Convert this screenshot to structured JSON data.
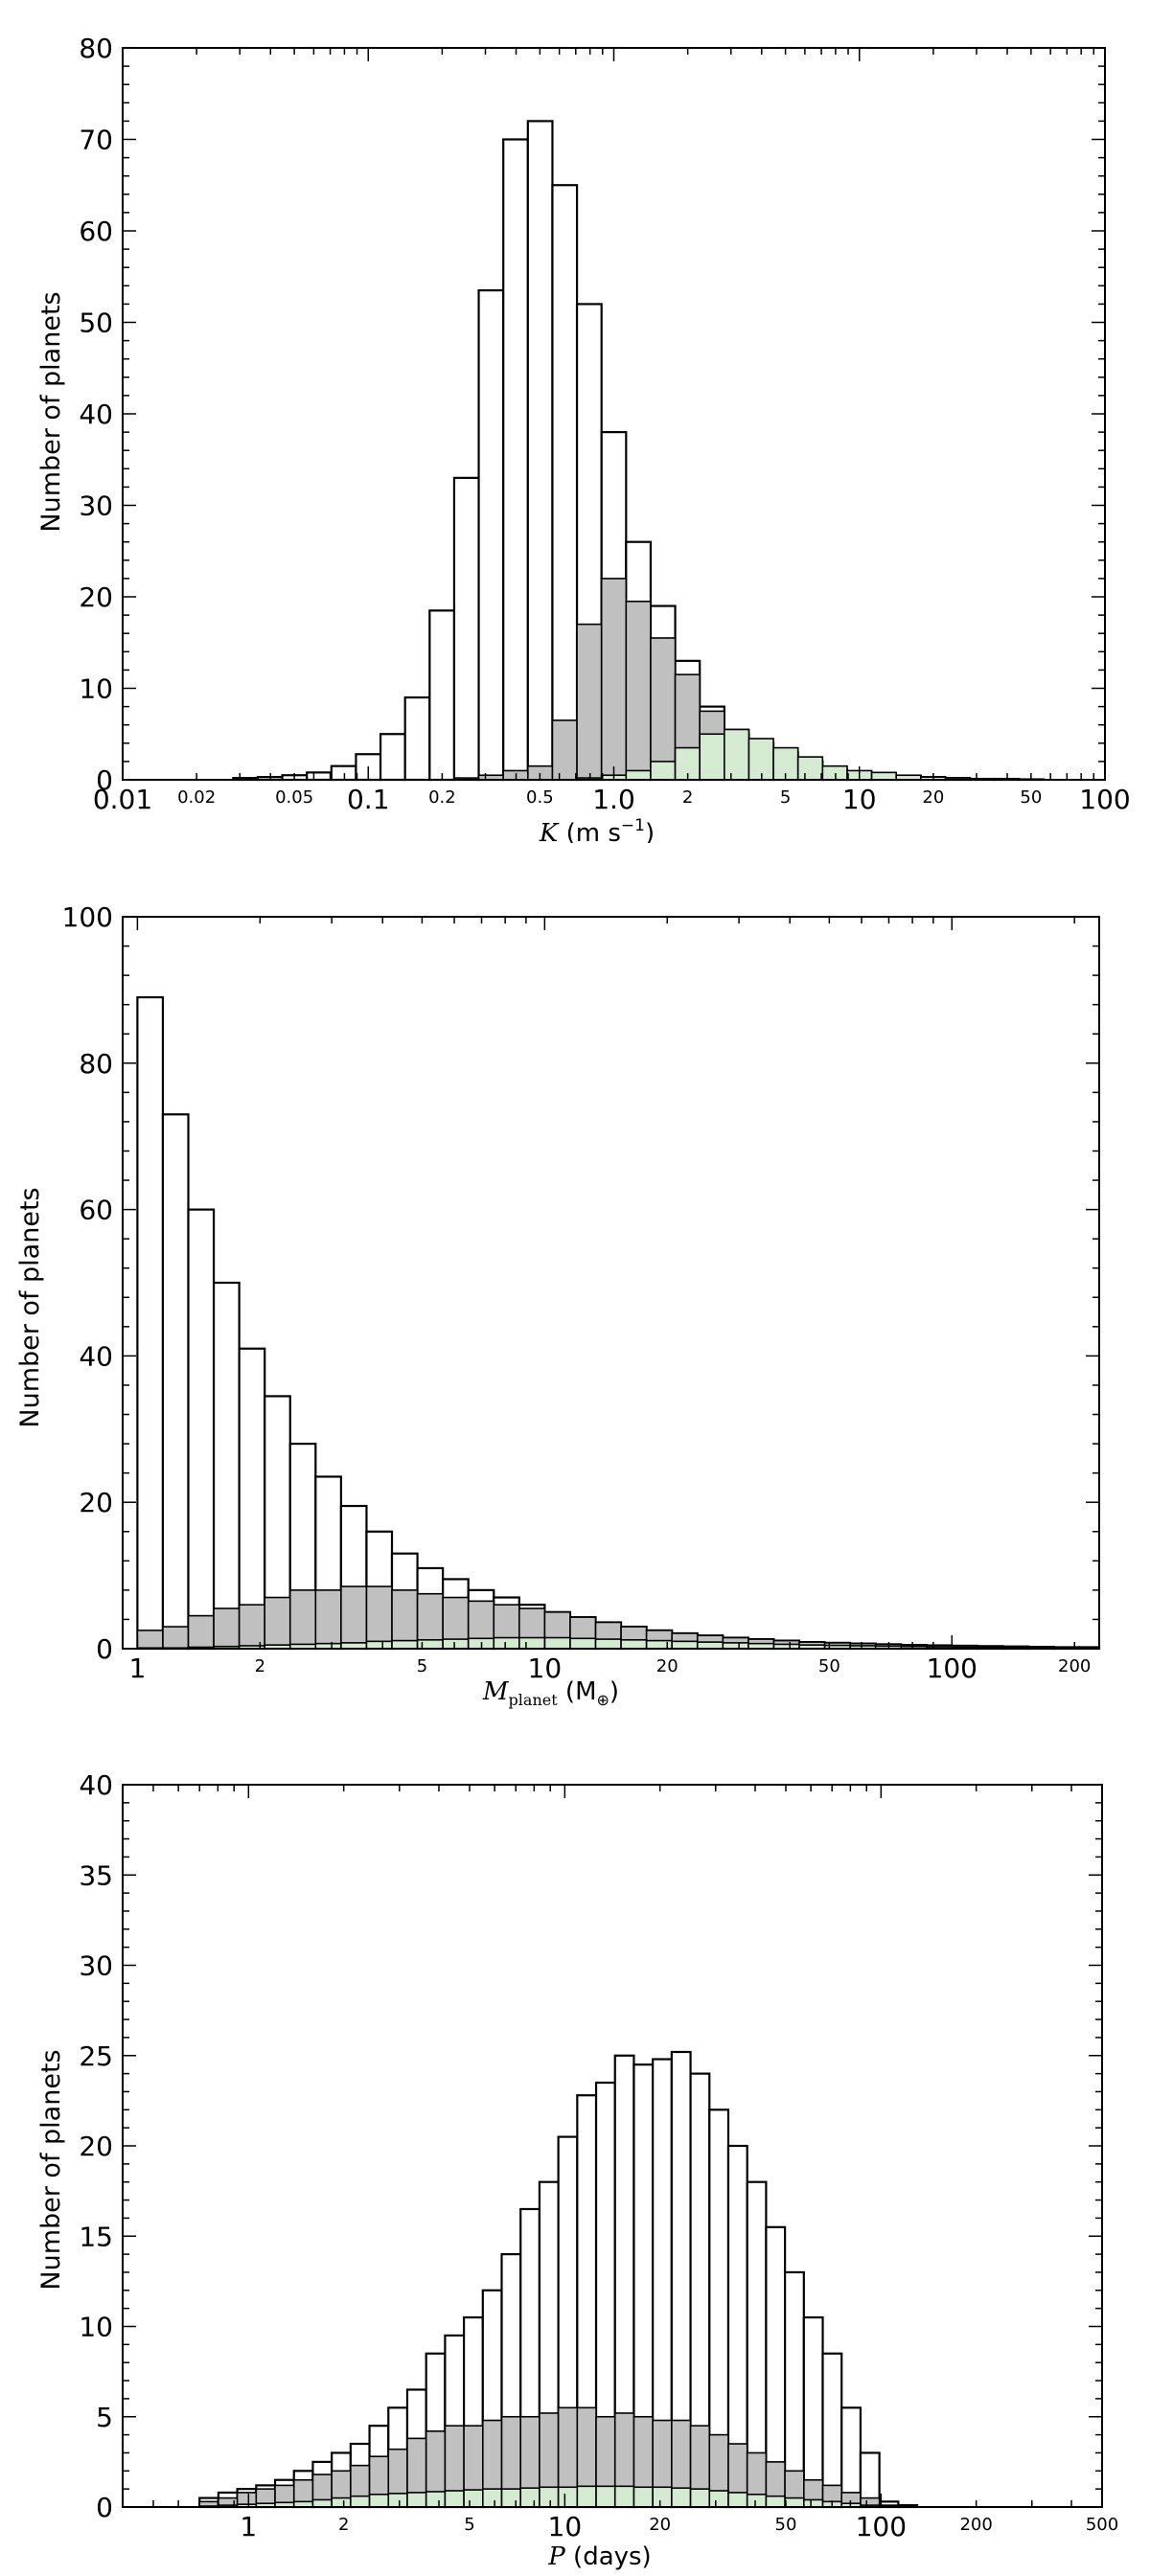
{
  "chart_data": [
    {
      "type": "bar",
      "title": "",
      "xlabel_italic": "K",
      "xlabel_rest": " (m s",
      "xlabel_sup": "−1",
      "xlabel_end": ")",
      "ylabel": "Number of planets",
      "xscale": "log",
      "xlim": [
        0.01,
        100
      ],
      "ylim": [
        0,
        80
      ],
      "xticks": [
        {
          "v": 0.01,
          "label": "0.01",
          "major": true
        },
        {
          "v": 0.02,
          "label": "0.02",
          "major": false
        },
        {
          "v": 0.05,
          "label": "0.05",
          "major": false
        },
        {
          "v": 0.1,
          "label": "0.1",
          "major": true
        },
        {
          "v": 0.2,
          "label": "0.2",
          "major": false
        },
        {
          "v": 0.5,
          "label": "0.5",
          "major": false
        },
        {
          "v": 1,
          "label": "1.0",
          "major": true
        },
        {
          "v": 2,
          "label": "2",
          "major": false
        },
        {
          "v": 5,
          "label": "5",
          "major": false
        },
        {
          "v": 10,
          "label": "10",
          "major": true
        },
        {
          "v": 20,
          "label": "20",
          "major": false
        },
        {
          "v": 50,
          "label": "50",
          "major": false
        },
        {
          "v": 100,
          "label": "100",
          "major": true
        }
      ],
      "yticks": [
        0,
        10,
        20,
        30,
        40,
        50,
        60,
        70,
        80
      ],
      "bin_edges_log10": [
        -1.55,
        -1.45,
        -1.35,
        -1.25,
        -1.15,
        -1.05,
        -0.95,
        -0.85,
        -0.75,
        -0.65,
        -0.55,
        -0.45,
        -0.35,
        -0.25,
        -0.15,
        -0.05,
        0.05,
        0.15,
        0.25,
        0.35,
        0.45,
        0.55,
        0.65,
        0.75,
        0.85,
        0.95,
        1.05,
        1.15,
        1.25,
        1.35,
        1.45,
        1.55,
        1.65,
        1.75
      ],
      "series": [
        {
          "color": "#ffffff",
          "values": [
            0.2,
            0.3,
            0.5,
            0.8,
            1.5,
            2.8,
            5,
            9,
            18.5,
            33,
            53.5,
            70,
            72,
            65,
            52,
            38,
            26,
            19,
            13,
            8,
            5,
            4,
            3,
            2,
            1.2,
            0.8,
            0.5,
            0.4,
            0.3,
            0.2,
            0.1,
            0.1,
            0.05
          ]
        },
        {
          "color": "#c0c0c0",
          "values": [
            0,
            0,
            0,
            0,
            0,
            0,
            0,
            0,
            0,
            0.2,
            0.5,
            1,
            1.5,
            6.5,
            17,
            22,
            19.5,
            15.5,
            11.5,
            7.5,
            5.5,
            4,
            3,
            2,
            1.2,
            0.8,
            0.5,
            0.4,
            0.3,
            0.2,
            0.1,
            0.1,
            0.05
          ]
        },
        {
          "color": "#d4ebd2",
          "values": [
            0,
            0,
            0,
            0,
            0,
            0,
            0,
            0,
            0,
            0,
            0,
            0,
            0,
            0,
            0.2,
            0.5,
            1,
            2,
            3.5,
            5,
            5.5,
            4.5,
            3.5,
            2.5,
            1.5,
            1,
            0.8,
            0.5,
            0.3,
            0.2,
            0.1,
            0.05,
            0
          ]
        }
      ]
    },
    {
      "type": "bar",
      "title": "",
      "xlabel_italic": "M",
      "xlabel_sub": "planet",
      "xlabel_rest": " (M",
      "xlabel_sub2": "⊕",
      "xlabel_end": ")",
      "ylabel": "Number of planets",
      "xscale": "log",
      "xlim": [
        0.92,
        230
      ],
      "ylim": [
        0,
        100
      ],
      "xticks": [
        {
          "v": 1,
          "label": "1",
          "major": true
        },
        {
          "v": 2,
          "label": "2",
          "major": false
        },
        {
          "v": 5,
          "label": "5",
          "major": false
        },
        {
          "v": 10,
          "label": "10",
          "major": true
        },
        {
          "v": 20,
          "label": "20",
          "major": false
        },
        {
          "v": 50,
          "label": "50",
          "major": false
        },
        {
          "v": 100,
          "label": "100",
          "major": true
        },
        {
          "v": 200,
          "label": "200",
          "major": false
        }
      ],
      "yticks": [
        0,
        20,
        40,
        60,
        80,
        100
      ],
      "bin_start": 1,
      "bin_ratio": 1.1548,
      "series": [
        {
          "color": "#ffffff",
          "values": [
            89,
            73,
            60,
            50,
            41,
            34.5,
            28,
            23.5,
            19.5,
            16,
            13,
            11,
            9.5,
            8,
            7,
            6,
            5,
            4.3,
            3.6,
            3,
            2.5,
            2.1,
            1.8,
            1.5,
            1.3,
            1.1,
            0.9,
            0.8,
            0.7,
            0.6,
            0.5,
            0.45,
            0.4,
            0.35,
            0.3,
            0.25,
            0.2,
            0.2,
            0.15,
            0.1
          ]
        },
        {
          "color": "#c0c0c0",
          "values": [
            2.5,
            3,
            4.5,
            5.5,
            6,
            7,
            8,
            8,
            8.5,
            8.5,
            8,
            7.5,
            7,
            6.5,
            6,
            5.5,
            5,
            4.3,
            3.6,
            3,
            2.5,
            2.1,
            1.8,
            1.5,
            1.3,
            1.1,
            0.9,
            0.8,
            0.7,
            0.6,
            0.5,
            0.45,
            0.4,
            0.35,
            0.3,
            0.25,
            0.2,
            0.2,
            0.15,
            0.1
          ]
        },
        {
          "color": "#d4ebd2",
          "values": [
            0.1,
            0.1,
            0.2,
            0.3,
            0.4,
            0.5,
            0.6,
            0.7,
            0.8,
            1,
            1.1,
            1.2,
            1.3,
            1.4,
            1.5,
            1.5,
            1.5,
            1.4,
            1.3,
            1.2,
            1.1,
            1,
            0.9,
            0.8,
            0.7,
            0.6,
            0.5,
            0.45,
            0.4,
            0.35,
            0.3,
            0.25,
            0.2,
            0.2,
            0.15,
            0.1,
            0.1,
            0.1,
            0.05,
            0.05
          ]
        }
      ]
    },
    {
      "type": "bar",
      "title": "",
      "xlabel_italic": "P",
      "xlabel_rest": " (days)",
      "ylabel": "Number of planets",
      "xscale": "log",
      "xlim": [
        0.4,
        500
      ],
      "ylim": [
        0,
        40
      ],
      "xticks": [
        {
          "v": 1,
          "label": "1",
          "major": true
        },
        {
          "v": 2,
          "label": "2",
          "major": false
        },
        {
          "v": 5,
          "label": "5",
          "major": false
        },
        {
          "v": 10,
          "label": "10",
          "major": true
        },
        {
          "v": 20,
          "label": "20",
          "major": false
        },
        {
          "v": 50,
          "label": "50",
          "major": false
        },
        {
          "v": 100,
          "label": "100",
          "major": true
        },
        {
          "v": 200,
          "label": "200",
          "major": false
        },
        {
          "v": 500,
          "label": "500",
          "major": false
        }
      ],
      "yticks": [
        0,
        5,
        10,
        15,
        20,
        25,
        30,
        35,
        40
      ],
      "bin_start": 0.7,
      "bin_ratio": 1.1474,
      "series": [
        {
          "color": "#ffffff",
          "values": [
            0.5,
            0.8,
            1,
            1.2,
            1.5,
            2,
            2.5,
            3,
            3.5,
            4.5,
            5.5,
            6.5,
            8.5,
            9.5,
            10.5,
            12,
            14,
            16.5,
            18,
            20.5,
            22.8,
            23.5,
            25,
            24.5,
            24.8,
            25.2,
            24,
            22,
            20,
            18,
            15.5,
            13,
            10.5,
            8.5,
            5.5,
            3,
            0.3,
            0.1
          ]
        },
        {
          "color": "#c0c0c0",
          "values": [
            0.3,
            0.5,
            0.8,
            1,
            1.2,
            1.5,
            1.8,
            2,
            2.3,
            2.8,
            3.2,
            3.8,
            4.2,
            4.5,
            4.5,
            4.8,
            5,
            5,
            5.2,
            5.5,
            5.5,
            5,
            5.2,
            5,
            4.8,
            4.8,
            4.5,
            4,
            3.5,
            3,
            2.5,
            2,
            1.5,
            1.2,
            0.8,
            0.5,
            0.1,
            0
          ]
        },
        {
          "color": "#d4ebd2",
          "values": [
            0.05,
            0.1,
            0.15,
            0.2,
            0.25,
            0.3,
            0.4,
            0.5,
            0.6,
            0.7,
            0.75,
            0.8,
            0.85,
            0.9,
            0.95,
            1,
            1,
            1.05,
            1.1,
            1.1,
            1.15,
            1.15,
            1.15,
            1.1,
            1.1,
            1.05,
            1,
            0.9,
            0.8,
            0.7,
            0.6,
            0.5,
            0.4,
            0.3,
            0.2,
            0.1,
            0.05,
            0
          ]
        }
      ]
    }
  ]
}
